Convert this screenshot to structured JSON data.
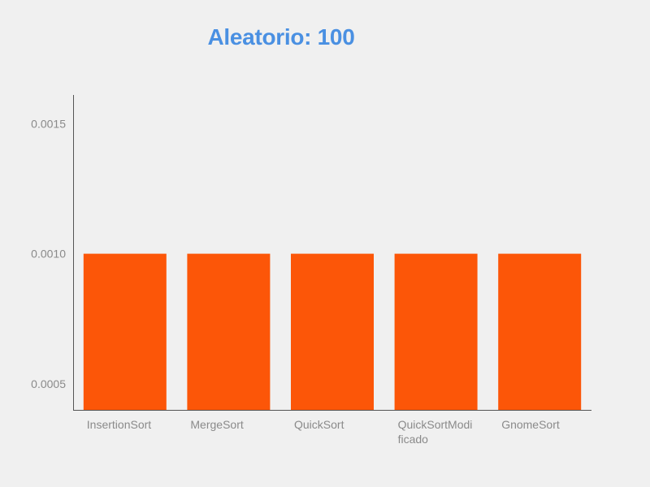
{
  "chart_data": {
    "type": "bar",
    "title": "Aleatorio: 100",
    "xlabel": "",
    "ylabel": "",
    "categories": [
      "InsertionSort",
      "MergeSort",
      "QuickSort",
      "QuickSortModificado",
      "GnomeSort"
    ],
    "category_label_lines": [
      [
        "InsertionSort"
      ],
      [
        "MergeSort"
      ],
      [
        "QuickSort"
      ],
      [
        "QuickSortModi",
        "ficado"
      ],
      [
        "GnomeSort"
      ]
    ],
    "values": [
      0.001,
      0.001,
      0.001,
      0.001,
      0.001
    ],
    "yticks": [
      "0.0005",
      "0.0010",
      "0.0015"
    ],
    "ylim": [
      0.0004,
      0.00161
    ],
    "grid": false,
    "legend": "none"
  },
  "colors": {
    "background": "#f0f0f0",
    "title": "#4a90e2",
    "bar": "#fc5608",
    "axis": "#555555",
    "tick_text": "#8a8a8a"
  }
}
